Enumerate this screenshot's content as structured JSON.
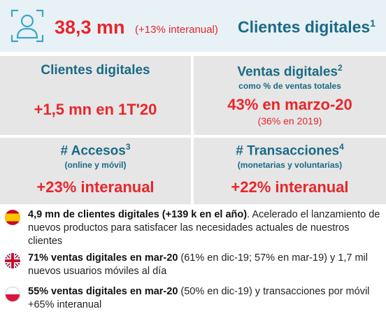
{
  "header": {
    "icon": "user-profile-icon",
    "main_value": "38,3 mn",
    "main_change": "(+13% interanual)",
    "label": "Clientes digitales",
    "label_sup": "1"
  },
  "cells": {
    "top_left": {
      "title": "Clientes digitales",
      "value": "+1,5 mn en 1T'20"
    },
    "top_right": {
      "title": "Ventas digitales",
      "title_sup": "2",
      "subtitle": "como % de ventas totales",
      "value": "43% en marzo-20",
      "note": "(36% en 2019)"
    },
    "bottom_left": {
      "title": "# Accesos",
      "title_sup": "3",
      "subtitle": "(online y móvil)",
      "value": "+23% interanual"
    },
    "bottom_right": {
      "title": "# Transacciones",
      "title_sup": "4",
      "subtitle": "(monetarias y voluntarias)",
      "value": "+22% interanual"
    }
  },
  "bullets": [
    {
      "flag": "spain-flag-icon",
      "bold": "4,9 mn de clientes digitales (+139 k en el año)",
      "text": ". Acelerado el lanzamiento de nuevos productos para satisfacer las necesidades actuales de nuestros clientes"
    },
    {
      "flag": "uk-flag-icon",
      "bold": "71% ventas digitales en mar-20",
      "text": " (61% en dic-19; 57% en mar-19) y 1,7 mil nuevos usuarios móviles al día"
    },
    {
      "flag": "poland-flag-icon",
      "bold": "55% ventas digitales en mar-20",
      "text": " (50% en dic-19) y transacciones por móvil +65% interanual"
    }
  ],
  "colors": {
    "accent_red": "#e8262b",
    "accent_blue": "#1a6a86",
    "header_bg": "#e8f1f6",
    "cell_bg": "#e6e6e6"
  }
}
